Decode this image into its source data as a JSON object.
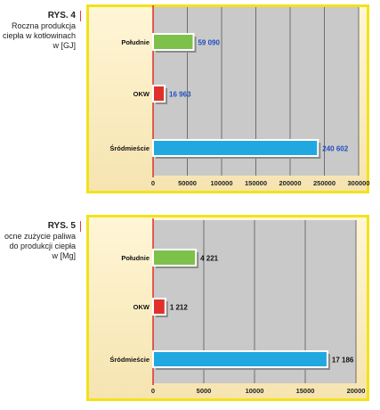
{
  "charts": [
    {
      "caption_number": "RYS. 4",
      "caption_lines": [
        "Roczna produkcja",
        "ciepła w kotłowinach",
        "w [GJ]"
      ]
    },
    {
      "caption_number": "RYS. 5",
      "caption_lines": [
        "ocne zużycie paliwa",
        "do produkcji ciepła",
        "w [Mg]"
      ]
    }
  ],
  "chart_data": [
    {
      "type": "bar",
      "orientation": "horizontal",
      "categories": [
        "Południe",
        "OKW",
        "Śródmieście"
      ],
      "values": [
        59090,
        16963,
        240602
      ],
      "value_labels": [
        "59 090",
        "16 963",
        "240 602"
      ],
      "bar_colors": [
        "#7dc14b",
        "#e0302b",
        "#21a8e1"
      ],
      "value_label_color": "#1f4fbf",
      "xticks": [
        "0",
        "50000",
        "100000",
        "150000",
        "200000",
        "250000",
        "300000"
      ],
      "xlim": [
        0,
        300000
      ],
      "grid": true,
      "title": "",
      "xlabel": "",
      "ylabel": ""
    },
    {
      "type": "bar",
      "orientation": "horizontal",
      "categories": [
        "Południe",
        "OKW",
        "Śródmieście"
      ],
      "values": [
        4221,
        1212,
        17186
      ],
      "value_labels": [
        "4 221",
        "1 212",
        "17 186"
      ],
      "bar_colors": [
        "#7dc14b",
        "#e0302b",
        "#21a8e1"
      ],
      "value_label_color": "#111111",
      "xticks": [
        "0",
        "5000",
        "10000",
        "15000",
        "20000"
      ],
      "xlim": [
        0,
        20000
      ],
      "grid": true,
      "title": "",
      "xlabel": "",
      "ylabel": ""
    }
  ]
}
